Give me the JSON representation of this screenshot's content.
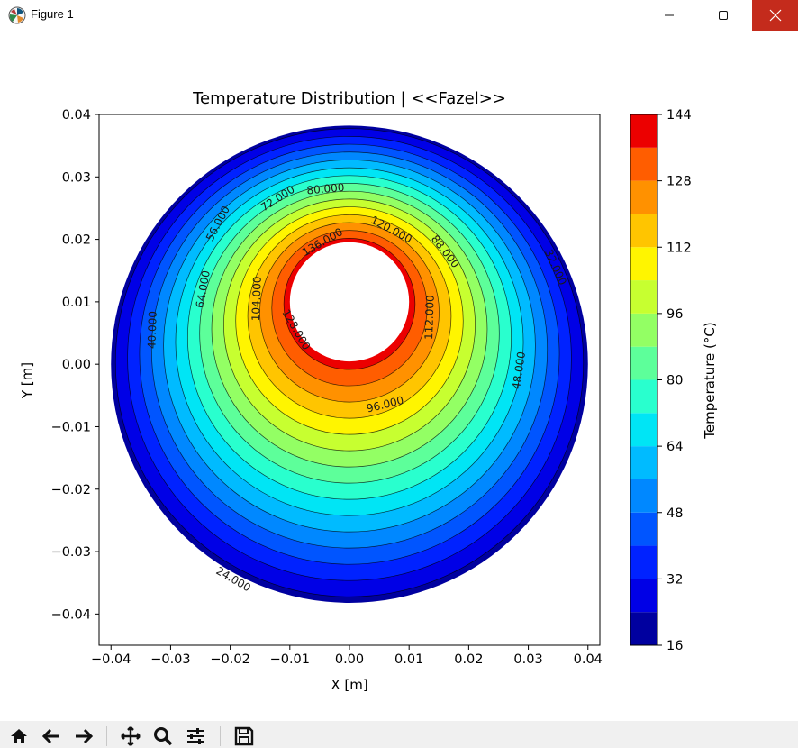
{
  "window": {
    "title": "Figure 1",
    "minimize_icon": "minimize-icon",
    "maximize_icon": "maximize-icon",
    "close_icon": "close-icon"
  },
  "toolbar": {
    "buttons": [
      {
        "name": "home-button",
        "icon": "home-icon"
      },
      {
        "name": "back-button",
        "icon": "arrow-left-icon"
      },
      {
        "name": "forward-button",
        "icon": "arrow-right-icon"
      },
      {
        "name": "pan-button",
        "icon": "move-icon"
      },
      {
        "name": "zoom-button",
        "icon": "magnifier-icon"
      },
      {
        "name": "configure-subplots-button",
        "icon": "sliders-icon"
      },
      {
        "name": "save-button",
        "icon": "floppy-disk-icon"
      }
    ]
  },
  "chart_data": {
    "type": "contourf",
    "title": "Temperature Distribution | <<Fazel>>",
    "xlabel": "X [m]",
    "ylabel": "Y [m]",
    "xlim": [
      -0.042,
      0.042
    ],
    "ylim": [
      -0.045,
      0.04
    ],
    "xticks": [
      -0.04,
      -0.03,
      -0.02,
      -0.01,
      0.0,
      0.01,
      0.02,
      0.03,
      0.04
    ],
    "xtick_labels": [
      "−0.04",
      "−0.03",
      "−0.02",
      "−0.01",
      "0.00",
      "0.01",
      "0.02",
      "0.03",
      "0.04"
    ],
    "yticks": [
      0.04,
      0.03,
      0.02,
      0.01,
      0.0,
      -0.01,
      -0.02,
      -0.03,
      -0.04
    ],
    "ytick_labels": [
      "0.04",
      "0.03",
      "0.02",
      "0.01",
      "0.00",
      "−0.01",
      "−0.02",
      "−0.03",
      "−0.04"
    ],
    "outer_circle": {
      "center": [
        0.0,
        0.0
      ],
      "radius": 0.04
    },
    "inner_circle": {
      "center": [
        0.0,
        0.01
      ],
      "radius": 0.01
    },
    "levels": [
      16,
      24,
      32,
      40,
      48,
      56,
      64,
      72,
      80,
      88,
      96,
      104,
      112,
      120,
      128,
      136,
      144
    ],
    "level_colors": [
      "#00009f",
      "#0000e6",
      "#0022ff",
      "#0055ff",
      "#0088ff",
      "#00bbff",
      "#00e5f5",
      "#29ffce",
      "#5dff9a",
      "#93ff64",
      "#c7ff30",
      "#fff500",
      "#ffc500",
      "#ff9100",
      "#ff5d00",
      "#ec0000",
      "#a40000"
    ],
    "contour_labels": [
      {
        "text": "120.000",
        "pos": [
          0.007,
          0.0215
        ],
        "angle": 28
      },
      {
        "text": "128.000",
        "pos": [
          -0.009,
          0.0055
        ],
        "angle": 60
      },
      {
        "text": "136.000",
        "pos": [
          -0.0045,
          0.0195
        ],
        "angle": -30
      },
      {
        "text": "104.000",
        "pos": [
          -0.0155,
          0.0105
        ],
        "angle": -88
      },
      {
        "text": "112.000",
        "pos": [
          0.0135,
          0.0075
        ],
        "angle": -88
      },
      {
        "text": "96.000",
        "pos": [
          0.006,
          -0.0065
        ],
        "angle": -14
      },
      {
        "text": "88.000",
        "pos": [
          0.016,
          0.018
        ],
        "angle": 52
      },
      {
        "text": "80.000",
        "pos": [
          -0.004,
          0.028
        ],
        "angle": -5
      },
      {
        "text": "72.000",
        "pos": [
          -0.012,
          0.0265
        ],
        "angle": -33
      },
      {
        "text": "64.000",
        "pos": [
          -0.0245,
          0.012
        ],
        "angle": -80
      },
      {
        "text": "56.000",
        "pos": [
          -0.022,
          0.0225
        ],
        "angle": -62
      },
      {
        "text": "48.000",
        "pos": [
          0.0285,
          -0.001
        ],
        "angle": -82
      },
      {
        "text": "40.000",
        "pos": [
          -0.033,
          0.0055
        ],
        "angle": -88
      },
      {
        "text": "32.000",
        "pos": [
          0.0345,
          0.0155
        ],
        "angle": 66
      },
      {
        "text": "24.000",
        "pos": [
          -0.0195,
          -0.0345
        ],
        "angle": 30
      }
    ],
    "colorbar": {
      "label": "Temperature (°C)",
      "range": [
        16,
        144
      ],
      "ticks": [
        16,
        32,
        48,
        64,
        80,
        96,
        112,
        128,
        144
      ]
    }
  }
}
